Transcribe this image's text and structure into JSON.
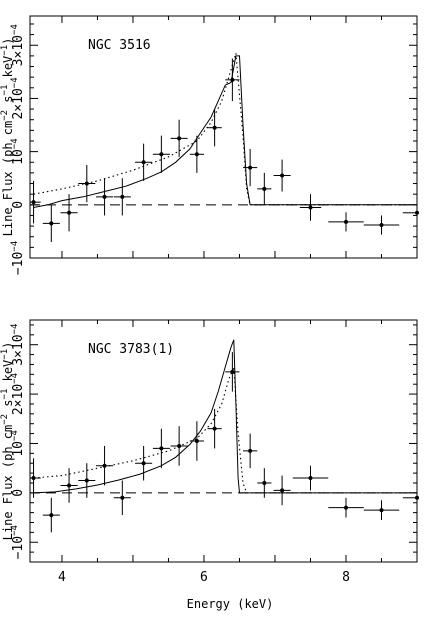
{
  "xlabel": "Energy (keV)",
  "ylabel_lead": "Line Flux (ph cm",
  "ylabel_exp1": "−2",
  "ylabel_mid": " s",
  "ylabel_exp2": "−1",
  "ylabel_mid2": " keV",
  "ylabel_exp3": "−1",
  "ylabel_tail": ")",
  "xticks": [
    "4",
    "6",
    "8"
  ],
  "yticks": [
    {
      "v": -1,
      "base": "−10",
      "exp": "−4"
    },
    {
      "v": 0,
      "base": "0",
      "exp": ""
    },
    {
      "v": 1,
      "base": "10",
      "exp": "−4"
    },
    {
      "v": 2,
      "base": "2×10",
      "exp": "−4"
    },
    {
      "v": 3,
      "base": "3×10",
      "exp": "−4"
    }
  ],
  "chart_data": [
    {
      "type": "scatter",
      "title": "NGC 3516",
      "xlim": [
        3.55,
        9.0
      ],
      "ylim": [
        -1.0,
        3.55
      ],
      "units_y": "1e-4 ph cm^-2 s^-1 keV^-1",
      "points": [
        {
          "x": 3.6,
          "y": 0.05,
          "xerr": 0.1,
          "yerr": 0.4
        },
        {
          "x": 3.85,
          "y": -0.35,
          "xerr": 0.12,
          "yerr": 0.35
        },
        {
          "x": 4.1,
          "y": -0.15,
          "xerr": 0.12,
          "yerr": 0.35
        },
        {
          "x": 4.35,
          "y": 0.4,
          "xerr": 0.12,
          "yerr": 0.35
        },
        {
          "x": 4.6,
          "y": 0.15,
          "xerr": 0.12,
          "yerr": 0.35
        },
        {
          "x": 4.85,
          "y": 0.15,
          "xerr": 0.12,
          "yerr": 0.35
        },
        {
          "x": 5.15,
          "y": 0.8,
          "xerr": 0.12,
          "yerr": 0.35
        },
        {
          "x": 5.4,
          "y": 0.95,
          "xerr": 0.12,
          "yerr": 0.35
        },
        {
          "x": 5.65,
          "y": 1.25,
          "xerr": 0.12,
          "yerr": 0.35
        },
        {
          "x": 5.9,
          "y": 0.95,
          "xerr": 0.1,
          "yerr": 0.35
        },
        {
          "x": 6.15,
          "y": 1.45,
          "xerr": 0.1,
          "yerr": 0.35
        },
        {
          "x": 6.4,
          "y": 2.35,
          "xerr": 0.1,
          "yerr": 0.4
        },
        {
          "x": 6.65,
          "y": 0.7,
          "xerr": 0.1,
          "yerr": 0.35
        },
        {
          "x": 6.85,
          "y": 0.3,
          "xerr": 0.1,
          "yerr": 0.3
        },
        {
          "x": 7.1,
          "y": 0.55,
          "xerr": 0.12,
          "yerr": 0.3
        },
        {
          "x": 7.5,
          "y": -0.05,
          "xerr": 0.15,
          "yerr": 0.25
        },
        {
          "x": 8.0,
          "y": -0.32,
          "xerr": 0.25,
          "yerr": 0.18
        },
        {
          "x": 8.5,
          "y": -0.38,
          "xerr": 0.25,
          "yerr": 0.18
        },
        {
          "x": 9.0,
          "y": -0.15,
          "xerr": 0.2,
          "yerr": 0.15
        }
      ],
      "model_solid": [
        [
          3.6,
          -0.05
        ],
        [
          3.8,
          0.0
        ],
        [
          4.0,
          0.08
        ],
        [
          4.3,
          0.15
        ],
        [
          4.6,
          0.25
        ],
        [
          4.9,
          0.35
        ],
        [
          5.2,
          0.5
        ],
        [
          5.4,
          0.62
        ],
        [
          5.6,
          0.8
        ],
        [
          5.8,
          1.05
        ],
        [
          5.95,
          1.35
        ],
        [
          6.1,
          1.65
        ],
        [
          6.2,
          1.95
        ],
        [
          6.3,
          2.25
        ],
        [
          6.38,
          2.3
        ],
        [
          6.45,
          2.8
        ],
        [
          6.5,
          2.8
        ],
        [
          6.55,
          1.5
        ],
        [
          6.6,
          0.4
        ],
        [
          6.65,
          0.0
        ],
        [
          9.0,
          0.0
        ]
      ],
      "model_dotted": [
        [
          3.6,
          0.2
        ],
        [
          4.0,
          0.3
        ],
        [
          4.5,
          0.45
        ],
        [
          5.0,
          0.65
        ],
        [
          5.5,
          0.9
        ],
        [
          5.9,
          1.2
        ],
        [
          6.1,
          1.55
        ],
        [
          6.25,
          1.95
        ],
        [
          6.35,
          2.4
        ],
        [
          6.45,
          2.85
        ],
        [
          6.55,
          1.3
        ],
        [
          6.6,
          0.3
        ],
        [
          6.65,
          0.0
        ],
        [
          9.0,
          0.0
        ]
      ]
    },
    {
      "type": "scatter",
      "title": "NGC 3783(1)",
      "xlim": [
        3.55,
        9.0
      ],
      "ylim": [
        -1.4,
        3.5
      ],
      "units_y": "1e-4 ph cm^-2 s^-1 keV^-1",
      "points": [
        {
          "x": 3.6,
          "y": 0.3,
          "xerr": 0.1,
          "yerr": 0.4
        },
        {
          "x": 3.85,
          "y": -0.45,
          "xerr": 0.12,
          "yerr": 0.35
        },
        {
          "x": 4.1,
          "y": 0.15,
          "xerr": 0.12,
          "yerr": 0.35
        },
        {
          "x": 4.35,
          "y": 0.25,
          "xerr": 0.12,
          "yerr": 0.35
        },
        {
          "x": 4.6,
          "y": 0.55,
          "xerr": 0.12,
          "yerr": 0.4
        },
        {
          "x": 4.85,
          "y": -0.1,
          "xerr": 0.12,
          "yerr": 0.35
        },
        {
          "x": 5.15,
          "y": 0.6,
          "xerr": 0.12,
          "yerr": 0.35
        },
        {
          "x": 5.4,
          "y": 0.9,
          "xerr": 0.12,
          "yerr": 0.4
        },
        {
          "x": 5.65,
          "y": 0.95,
          "xerr": 0.12,
          "yerr": 0.4
        },
        {
          "x": 5.9,
          "y": 1.05,
          "xerr": 0.1,
          "yerr": 0.4
        },
        {
          "x": 6.15,
          "y": 1.3,
          "xerr": 0.1,
          "yerr": 0.4
        },
        {
          "x": 6.4,
          "y": 2.45,
          "xerr": 0.1,
          "yerr": 0.4
        },
        {
          "x": 6.65,
          "y": 0.85,
          "xerr": 0.1,
          "yerr": 0.35
        },
        {
          "x": 6.85,
          "y": 0.2,
          "xerr": 0.1,
          "yerr": 0.3
        },
        {
          "x": 7.1,
          "y": 0.05,
          "xerr": 0.12,
          "yerr": 0.3
        },
        {
          "x": 7.5,
          "y": 0.3,
          "xerr": 0.25,
          "yerr": 0.25
        },
        {
          "x": 8.0,
          "y": -0.3,
          "xerr": 0.25,
          "yerr": 0.2
        },
        {
          "x": 8.5,
          "y": -0.35,
          "xerr": 0.25,
          "yerr": 0.2
        },
        {
          "x": 9.0,
          "y": -0.1,
          "xerr": 0.2,
          "yerr": 0.15
        }
      ],
      "model_solid": [
        [
          3.6,
          0.0
        ],
        [
          3.9,
          0.02
        ],
        [
          4.2,
          0.08
        ],
        [
          4.5,
          0.16
        ],
        [
          4.8,
          0.26
        ],
        [
          5.1,
          0.38
        ],
        [
          5.4,
          0.55
        ],
        [
          5.6,
          0.72
        ],
        [
          5.8,
          0.98
        ],
        [
          5.95,
          1.25
        ],
        [
          6.1,
          1.62
        ],
        [
          6.2,
          2.05
        ],
        [
          6.3,
          2.55
        ],
        [
          6.38,
          2.95
        ],
        [
          6.42,
          3.1
        ],
        [
          6.45,
          1.8
        ],
        [
          6.48,
          0.3
        ],
        [
          6.5,
          0.0
        ],
        [
          9.0,
          0.0
        ]
      ],
      "model_dotted": [
        [
          3.6,
          0.3
        ],
        [
          4.0,
          0.35
        ],
        [
          4.5,
          0.5
        ],
        [
          5.0,
          0.65
        ],
        [
          5.5,
          0.85
        ],
        [
          5.9,
          1.1
        ],
        [
          6.1,
          1.4
        ],
        [
          6.25,
          1.8
        ],
        [
          6.35,
          2.3
        ],
        [
          6.42,
          2.55
        ],
        [
          6.48,
          1.2
        ],
        [
          6.55,
          0.2
        ],
        [
          6.6,
          0.0
        ],
        [
          9.0,
          0.0
        ]
      ]
    }
  ]
}
